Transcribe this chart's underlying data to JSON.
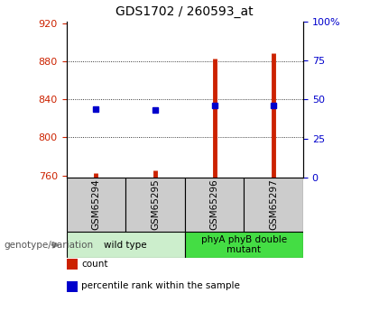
{
  "title": "GDS1702 / 260593_at",
  "samples": [
    "GSM65294",
    "GSM65295",
    "GSM65296",
    "GSM65297"
  ],
  "count_values": [
    762,
    765,
    883,
    889
  ],
  "percentile_values": [
    44,
    43,
    46,
    46
  ],
  "ylim_left": [
    758,
    922
  ],
  "ylim_right": [
    0,
    100
  ],
  "yticks_left": [
    760,
    800,
    840,
    880,
    920
  ],
  "yticks_right": [
    0,
    25,
    50,
    75,
    100
  ],
  "ytick_labels_right": [
    "0",
    "25",
    "50",
    "75",
    "100%"
  ],
  "grid_ticks": [
    800,
    840,
    880
  ],
  "bar_color": "#cc2200",
  "dot_color": "#0000cc",
  "groups": [
    {
      "label": "wild type",
      "indices": [
        0,
        1
      ],
      "color": "#cceecc"
    },
    {
      "label": "phyA phyB double\nmutant",
      "indices": [
        2,
        3
      ],
      "color": "#44dd44"
    }
  ],
  "genotype_label": "genotype/variation",
  "legend_items": [
    {
      "color": "#cc2200",
      "label": "count"
    },
    {
      "color": "#0000cc",
      "label": "percentile rank within the sample"
    }
  ],
  "ax_left_color": "#cc2200",
  "ax_right_color": "#0000cc",
  "sample_box_color": "#cccccc",
  "arrow_color": "#888888"
}
